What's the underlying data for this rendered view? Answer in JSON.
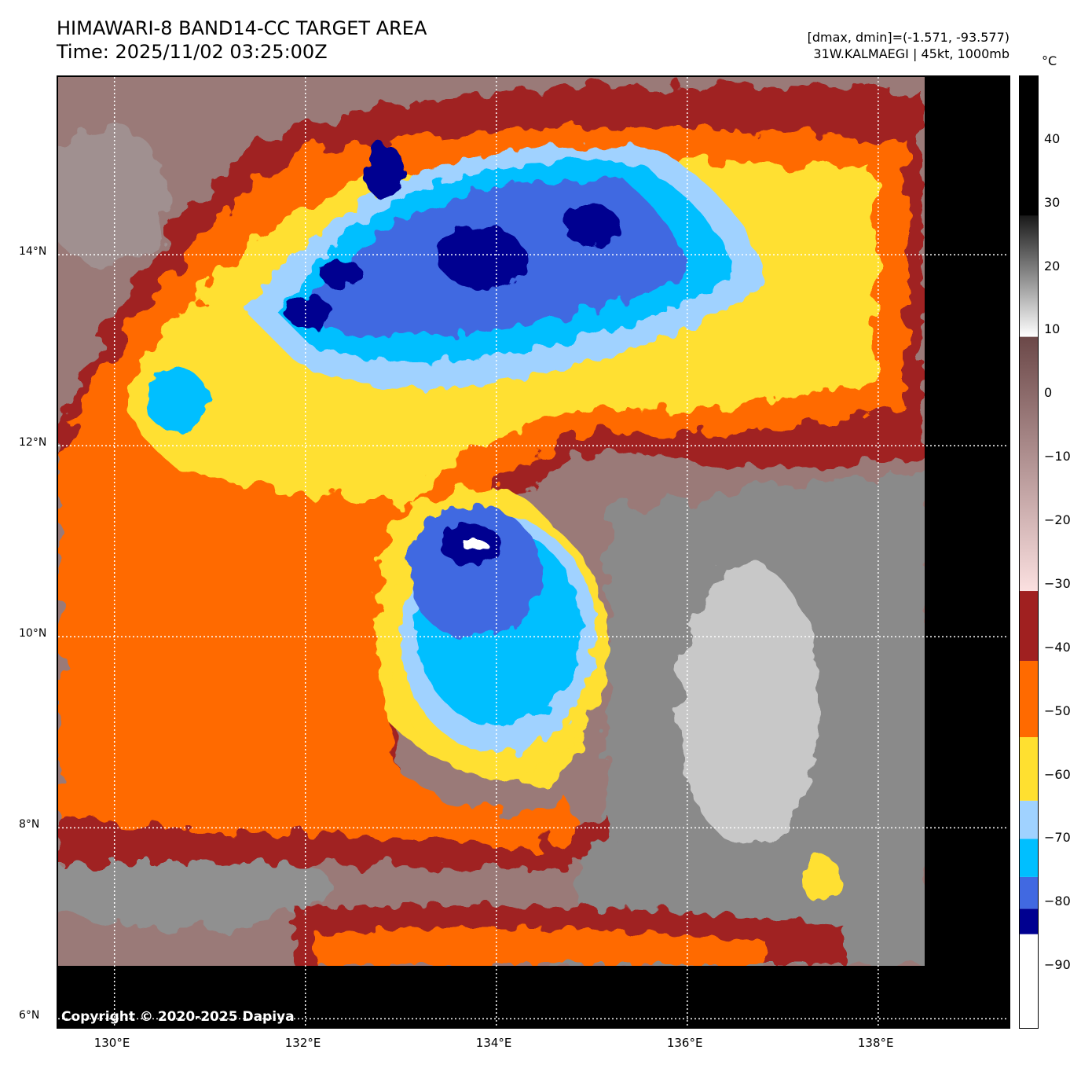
{
  "header": {
    "title": "HIMAWARI-8 BAND14-CC TARGET AREA",
    "time": "Time: 2025/11/02 03:25:00Z",
    "dmax_dmin": "[dmax, dmin]=(-1.571, -93.577)",
    "storm": "31W.KALMAEGI | 45kt, 1000mb"
  },
  "map": {
    "lon_range": [
      129.41,
      139.4
    ],
    "lat_range": [
      5.88,
      15.86
    ],
    "lon_ticks": [
      {
        "v": 130,
        "label": "130°E"
      },
      {
        "v": 132,
        "label": "132°E"
      },
      {
        "v": 134,
        "label": "134°E"
      },
      {
        "v": 136,
        "label": "136°E"
      },
      {
        "v": 138,
        "label": "138°E"
      }
    ],
    "lat_ticks": [
      {
        "v": 6,
        "label": "6°N"
      },
      {
        "v": 8,
        "label": "8°N"
      },
      {
        "v": 10,
        "label": "10°N"
      },
      {
        "v": 12,
        "label": "12°N"
      },
      {
        "v": 14,
        "label": "14°N"
      }
    ],
    "copyright": "Copyright © 2020-2025 Dapiya"
  },
  "colorbar": {
    "unit": "°C",
    "range": [
      -100,
      50
    ],
    "ticks": [
      {
        "v": 40,
        "label": "40"
      },
      {
        "v": 30,
        "label": "30"
      },
      {
        "v": 20,
        "label": "20"
      },
      {
        "v": 10,
        "label": "10"
      },
      {
        "v": 0,
        "label": "0"
      },
      {
        "v": -10,
        "label": "−10"
      },
      {
        "v": -20,
        "label": "−20"
      },
      {
        "v": -30,
        "label": "−30"
      },
      {
        "v": -40,
        "label": "−40"
      },
      {
        "v": -50,
        "label": "−50"
      },
      {
        "v": -60,
        "label": "−60"
      },
      {
        "v": -70,
        "label": "−70"
      },
      {
        "v": -80,
        "label": "−80"
      },
      {
        "v": -90,
        "label": "−90"
      }
    ],
    "segments": [
      {
        "from": -100,
        "to": -85,
        "color": "#ffffff"
      },
      {
        "from": -85,
        "to": -81,
        "color": "#000090"
      },
      {
        "from": -81,
        "to": -76,
        "color": "#4169e1"
      },
      {
        "from": -76,
        "to": -70,
        "color": "#00bfff"
      },
      {
        "from": -70,
        "to": -64,
        "color": "#a0d2ff"
      },
      {
        "from": -64,
        "to": -54,
        "color": "#ffe030"
      },
      {
        "from": -54,
        "to": -42,
        "color": "#ff6a00"
      },
      {
        "from": -42,
        "to": -31,
        "color": "#a02020"
      },
      {
        "from": -31,
        "to": 9,
        "gradient": [
          "#fbe0e0",
          "#6b4848"
        ]
      },
      {
        "from": 9,
        "to": 28,
        "gradient": [
          "#ffffff",
          "#1a1a1a"
        ]
      },
      {
        "from": 28,
        "to": 50,
        "color": "#000000"
      }
    ]
  }
}
